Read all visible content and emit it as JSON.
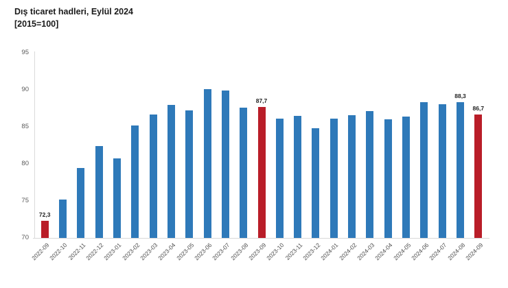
{
  "title": "Dış ticaret hadleri, Eylül 2024",
  "subtitle": "[2015=100]",
  "colors": {
    "bar": "#2e79b9",
    "highlight": "#b91d28",
    "axis_line": "#d9d9d9",
    "tick_text": "#595959",
    "value_label_text": "#1f1f1f",
    "background": "#ffffff"
  },
  "chart_data": {
    "type": "bar",
    "title": "Dış ticaret hadleri, Eylül 2024",
    "subtitle": "[2015=100]",
    "xlabel": "",
    "ylabel": "",
    "categories": [
      "2022-09",
      "2022-10",
      "2022-11",
      "2022-12",
      "2023-01",
      "2023-02",
      "2023-03",
      "2023-04",
      "2023-05",
      "2023-06",
      "2023-07",
      "2023-08",
      "2023-09",
      "2023-10",
      "2023-11",
      "2023-12",
      "2024-01",
      "2024-02",
      "2024-03",
      "2024-04",
      "2024-05",
      "2024-06",
      "2024-07",
      "2024-08",
      "2024-09"
    ],
    "values": [
      72.3,
      75.2,
      79.4,
      82.4,
      80.7,
      85.2,
      86.7,
      88.0,
      87.2,
      90.1,
      89.9,
      87.6,
      87.7,
      86.1,
      86.5,
      84.8,
      86.1,
      86.6,
      87.1,
      86.0,
      86.4,
      88.3,
      88.1,
      88.3,
      86.7
    ],
    "highlight_indices": [
      0,
      12,
      24
    ],
    "data_labels": {
      "0": "72,3",
      "12": "87,7",
      "23": "88,3",
      "24": "86,7"
    },
    "ylim": [
      70,
      95
    ],
    "yticks": [
      95,
      90,
      85,
      80,
      75,
      70
    ],
    "grid": false,
    "legend": null
  }
}
